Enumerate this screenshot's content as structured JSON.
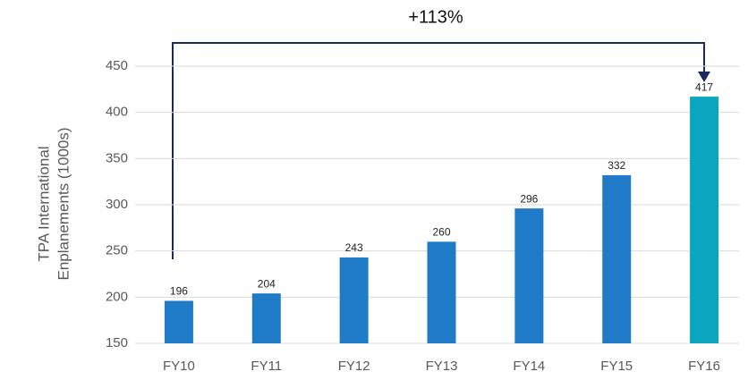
{
  "chart_data": {
    "type": "bar",
    "annotation": "+113%",
    "ylabel": [
      "TPA International",
      "Enplanements (1000s)"
    ],
    "categories": [
      "FY10",
      "FY11",
      "FY12",
      "FY13",
      "FY14",
      "FY15",
      "FY16"
    ],
    "values": [
      196,
      204,
      243,
      260,
      296,
      332,
      417
    ],
    "colors": [
      "#1f7bc8",
      "#1f7bc8",
      "#1f7bc8",
      "#1f7bc8",
      "#1f7bc8",
      "#1f7bc8",
      "#0aa5bf"
    ],
    "ylim": [
      150,
      450
    ],
    "yticks": [
      150,
      200,
      250,
      300,
      350,
      400,
      450
    ],
    "grid": true
  }
}
